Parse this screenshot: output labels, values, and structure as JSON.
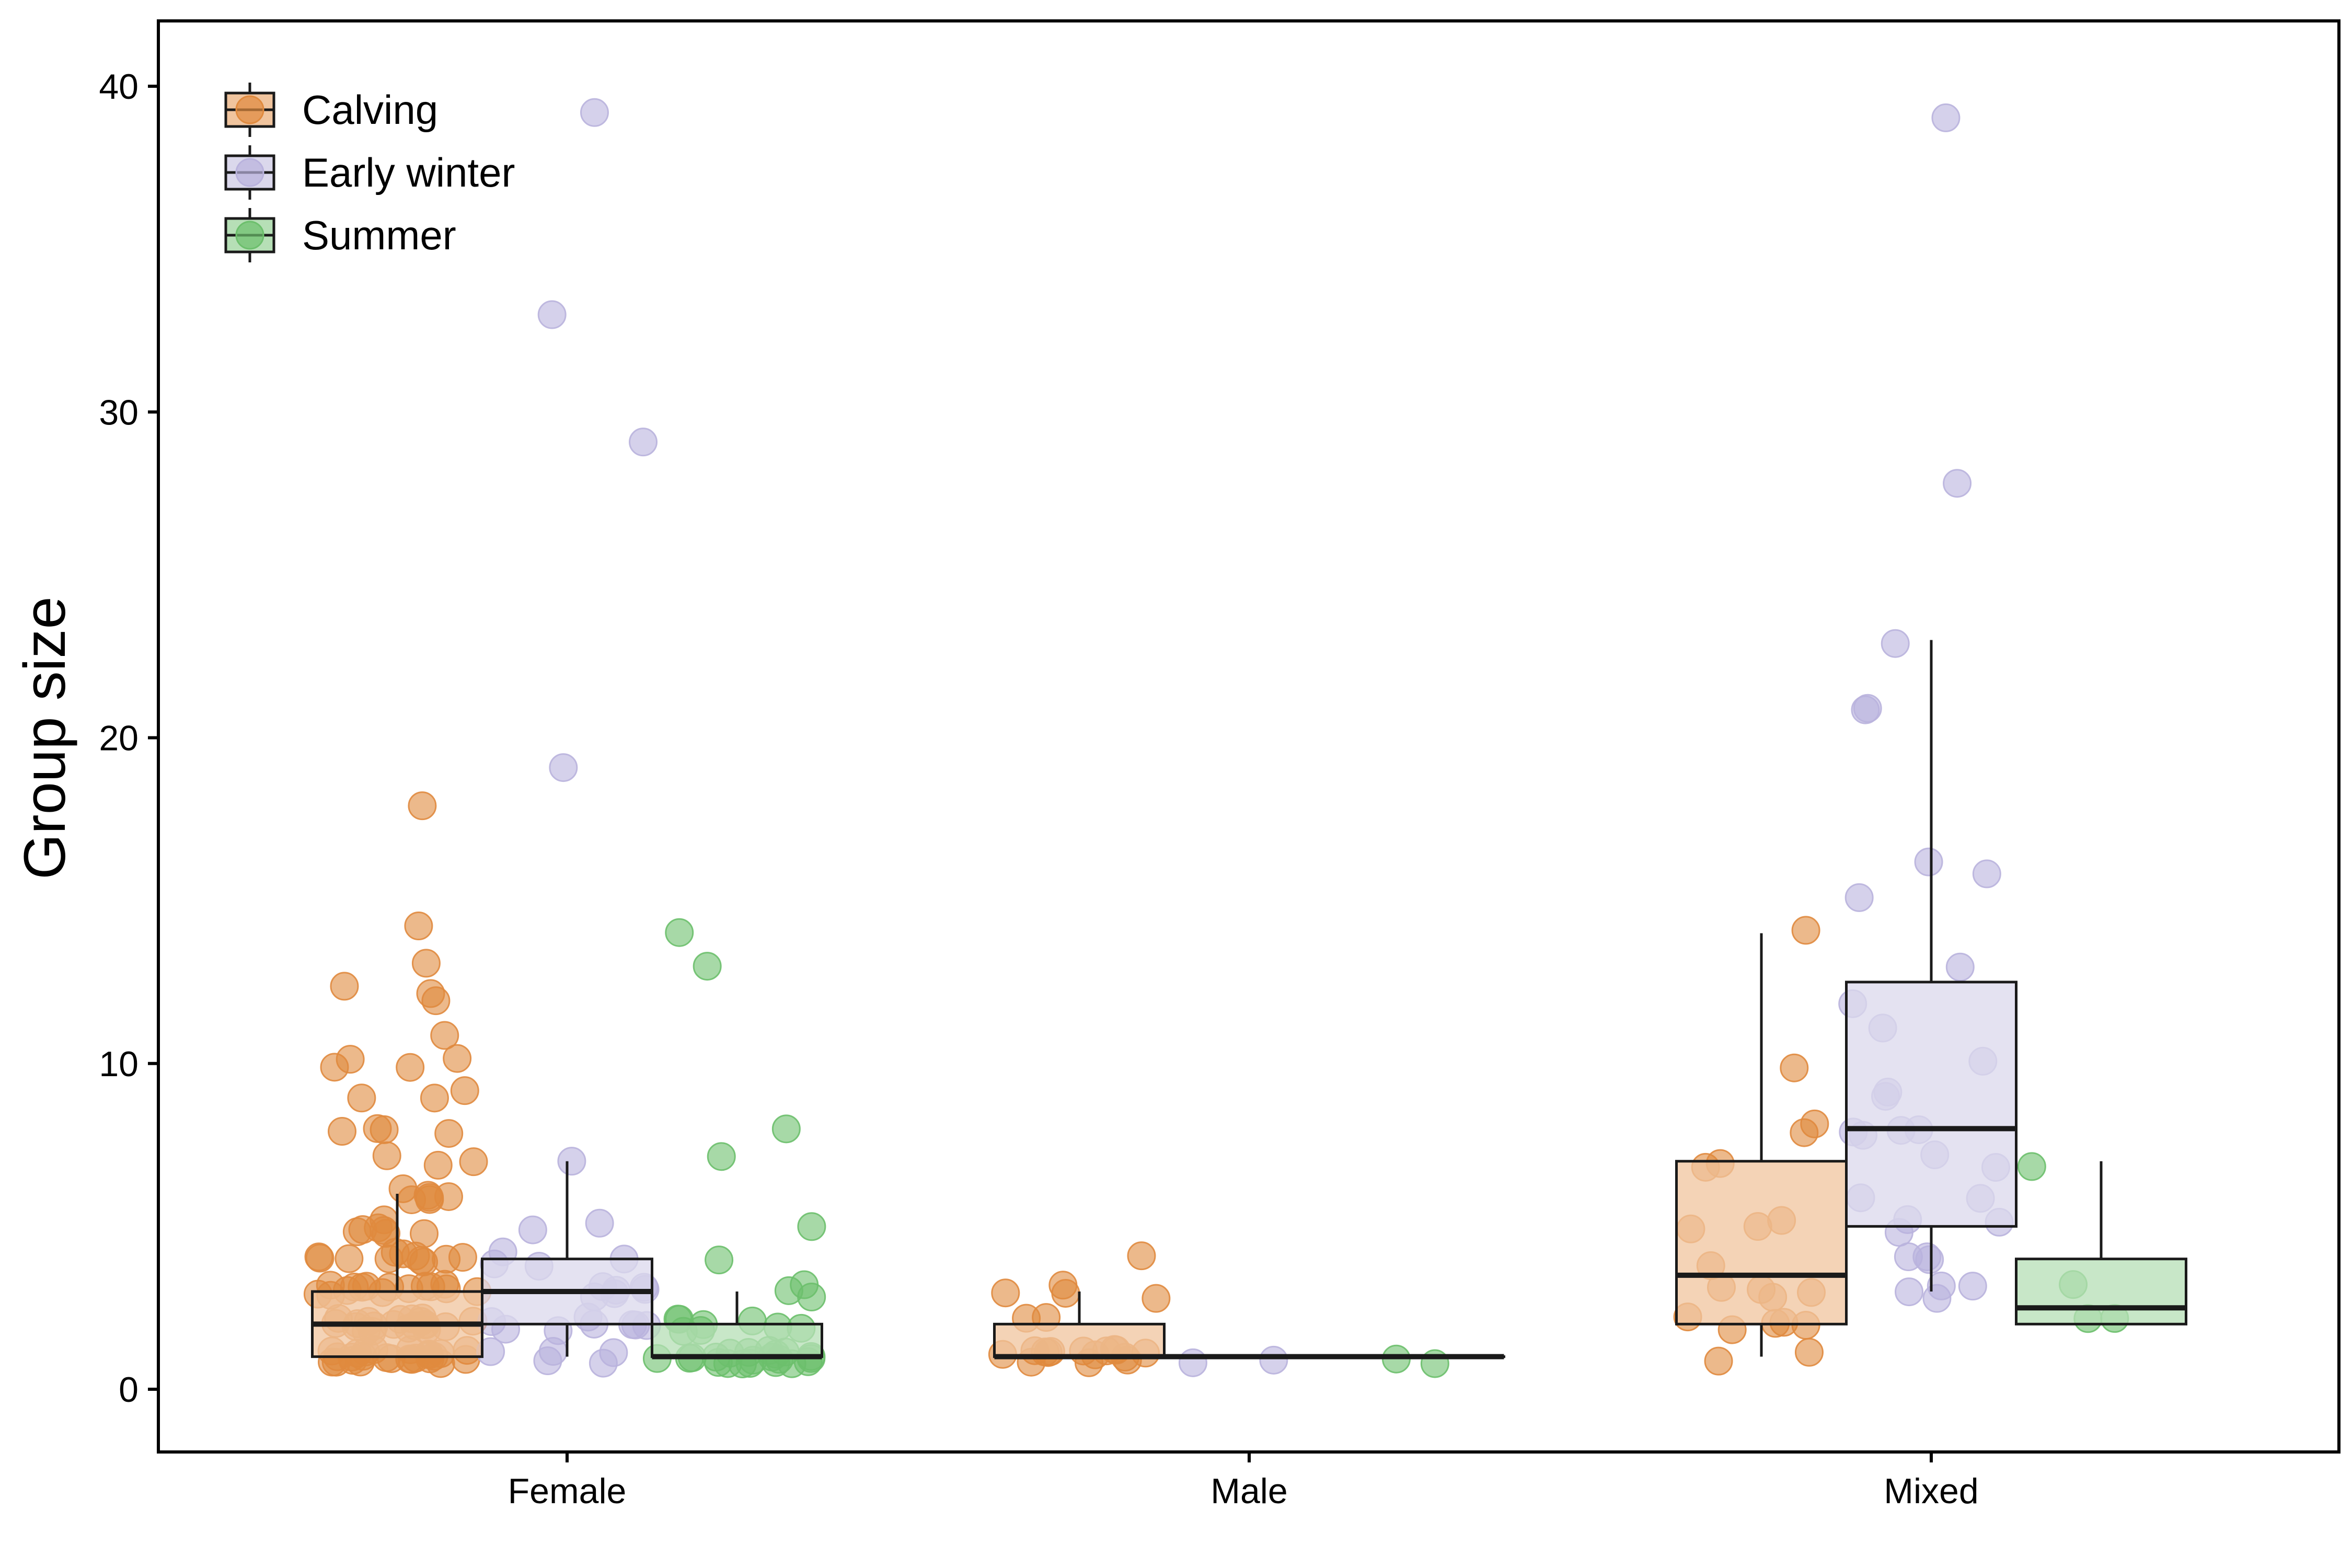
{
  "chart_data": {
    "type": "box",
    "title": "",
    "xlabel": "",
    "ylabel": "Group size",
    "ylim": [
      -2,
      42
    ],
    "yticks": [
      0,
      10,
      20,
      30,
      40
    ],
    "categories": [
      "Female",
      "Male",
      "Mixed"
    ],
    "legend_position": "top-left",
    "grid": false,
    "series": [
      {
        "name": "Calving",
        "color": "#e08a3e",
        "fill": "#f0c49e",
        "boxes": [
          {
            "category": "Female",
            "q1": 1,
            "median": 2,
            "q3": 3,
            "whisker_low": 1,
            "whisker_high": 6
          },
          {
            "category": "Male",
            "q1": 1,
            "median": 1,
            "q3": 2,
            "whisker_low": 1,
            "whisker_high": 3
          },
          {
            "category": "Mixed",
            "q1": 2,
            "median": 3.5,
            "q3": 7,
            "whisker_low": 1,
            "whisker_high": 14
          }
        ],
        "points": {
          "Female": [
            18,
            14,
            13,
            12.2,
            12,
            12,
            11,
            10,
            10,
            10,
            9.9,
            9,
            9,
            9,
            8,
            8,
            8,
            8,
            7,
            7,
            7,
            6,
            6,
            6,
            6,
            6,
            6,
            5,
            5,
            5,
            5,
            5,
            5,
            5,
            4,
            4,
            4,
            4,
            4,
            4,
            4,
            4,
            4,
            4,
            4,
            3,
            3,
            3,
            3,
            3,
            3,
            3,
            3,
            3,
            3,
            3,
            3,
            3,
            3,
            3,
            2,
            2,
            2,
            2,
            2,
            2,
            2,
            2,
            2,
            2,
            2,
            2,
            2,
            2,
            2,
            2,
            2,
            2,
            2,
            2,
            1,
            1,
            1,
            1,
            1,
            1,
            1,
            1,
            1,
            1,
            1,
            1,
            1,
            1,
            1,
            1,
            1,
            1,
            1,
            1,
            1,
            1,
            1,
            1,
            1
          ],
          "Male": [
            4.2,
            3,
            3,
            3,
            3,
            2,
            2,
            1,
            1,
            1,
            1,
            1,
            1,
            1,
            1,
            1,
            1,
            1,
            1,
            1,
            1,
            1
          ],
          "Mixed": [
            14,
            10,
            8,
            8,
            7,
            7,
            5,
            5,
            5,
            4,
            3,
            3,
            3,
            3,
            2,
            2,
            2,
            2,
            2,
            1,
            1
          ]
        }
      },
      {
        "name": "Early winter",
        "color": "#b9b2dd",
        "fill": "#dbd8ec",
        "boxes": [
          {
            "category": "Female",
            "q1": 2,
            "median": 3,
            "q3": 4,
            "whisker_low": 1,
            "whisker_high": 7
          },
          {
            "category": "Male",
            "q1": 1,
            "median": 1,
            "q3": 1,
            "whisker_low": 1,
            "whisker_high": 1
          },
          {
            "category": "Mixed",
            "q1": 5,
            "median": 8,
            "q3": 12.5,
            "whisker_low": 3,
            "whisker_high": 23
          }
        ],
        "points": {
          "Female": [
            39,
            33,
            29,
            19,
            7,
            5,
            5,
            4,
            4,
            4,
            4,
            3,
            3,
            3,
            3,
            3,
            3,
            2,
            2,
            2,
            2,
            2,
            2,
            2,
            2,
            1,
            1,
            1,
            1,
            1
          ],
          "Male": [
            1,
            1
          ],
          "Mixed": [
            39,
            28,
            23,
            21,
            21,
            16,
            16,
            15,
            13,
            12,
            11,
            10,
            9,
            9,
            8,
            8,
            8,
            8,
            7,
            7,
            6,
            6,
            5,
            5,
            5,
            4,
            4,
            4,
            3,
            3,
            3,
            3
          ]
        }
      },
      {
        "name": "Summer",
        "color": "#6cbf6c",
        "fill": "#b6dfb6",
        "boxes": [
          {
            "category": "Female",
            "q1": 1,
            "median": 1,
            "q3": 2,
            "whisker_low": 1,
            "whisker_high": 3
          },
          {
            "category": "Male",
            "q1": 1,
            "median": 1,
            "q3": 1,
            "whisker_low": 1,
            "whisker_high": 1
          },
          {
            "category": "Mixed",
            "q1": 2,
            "median": 2.5,
            "q3": 4,
            "whisker_low": 2,
            "whisker_high": 7
          }
        ],
        "points": {
          "Female": [
            14,
            13,
            8,
            7,
            5,
            4,
            3,
            3,
            3,
            2,
            2,
            2,
            2,
            2,
            2,
            2,
            2,
            1,
            1,
            1,
            1,
            1,
            1,
            1,
            1,
            1,
            1,
            1,
            1,
            1,
            1,
            1,
            1,
            1,
            1,
            1,
            1,
            1
          ],
          "Male": [
            1,
            1
          ],
          "Mixed": [
            7,
            3,
            2,
            2
          ]
        }
      }
    ]
  }
}
